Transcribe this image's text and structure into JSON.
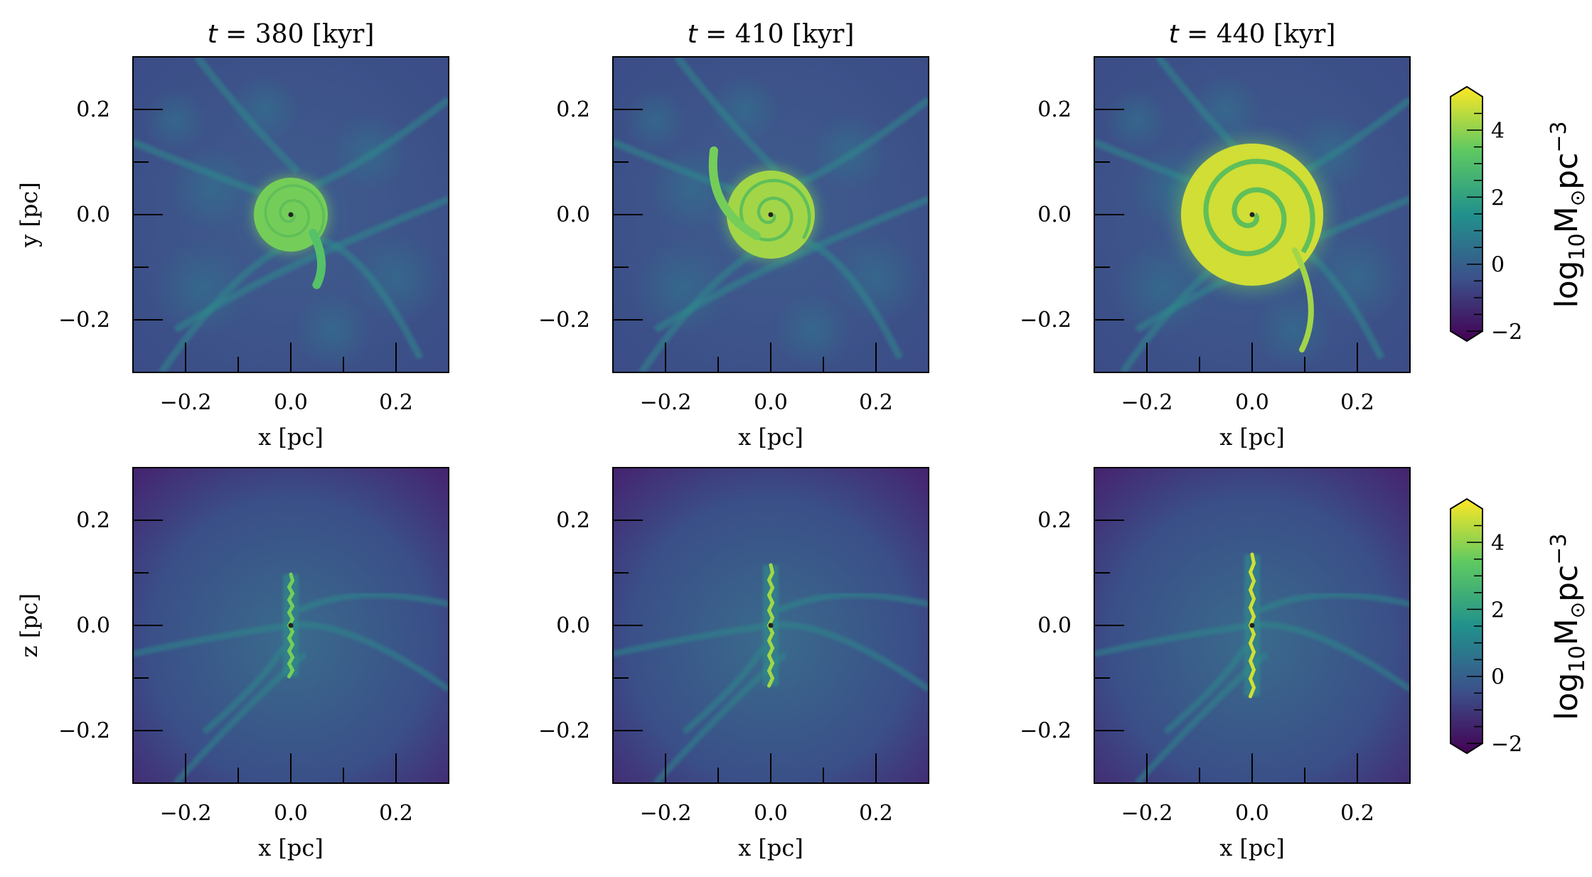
{
  "figure": {
    "panel_titles": [
      "t = 380 [kyr]",
      "t = 410 [kyr]",
      "t = 440 [kyr]"
    ],
    "panel_title_parts": [
      {
        "italic": "t",
        "rest": " = 380 [kyr]"
      },
      {
        "italic": "t",
        "rest": " = 410 [kyr]"
      },
      {
        "italic": "t",
        "rest": " = 440 [kyr]"
      }
    ],
    "row_ylabels": [
      "y [pc]",
      "z [pc]"
    ],
    "xlabel": "x [pc]",
    "colorbar_label_parts": {
      "base": "log",
      "sub": "10",
      "unit": "M",
      "sun": "⊙",
      "pc": "pc",
      "sup": "−3"
    },
    "colorbar_ticks": [
      "4",
      "2",
      "0",
      "−2"
    ],
    "colorbar_tick_values": [
      4,
      2,
      0,
      -2
    ],
    "colorbar_range": [
      -2,
      5
    ],
    "colormap": "viridis",
    "colormap_colors": [
      "#440154",
      "#3b528b",
      "#21918c",
      "#5ec962",
      "#fde725"
    ]
  },
  "chart_data": [
    {
      "type": "heatmap",
      "title": "t = 380 [kyr]",
      "xlabel": "x [pc]",
      "ylabel": "y [pc]",
      "xlim": [
        -0.3,
        0.3
      ],
      "ylim": [
        -0.3,
        0.3
      ],
      "xticks": [
        "−0.2",
        "0.0",
        "0.2"
      ],
      "yticks": [
        "0.2",
        "0.0",
        "−0.2"
      ],
      "colorbar": "log10 M⊙ pc−3",
      "projection": "face-on",
      "disk_level": 3.5
    },
    {
      "type": "heatmap",
      "title": "t = 410 [kyr]",
      "xlabel": "x [pc]",
      "ylabel": "",
      "xlim": [
        -0.3,
        0.3
      ],
      "ylim": [
        -0.3,
        0.3
      ],
      "xticks": [
        "−0.2",
        "0.0",
        "0.2"
      ],
      "yticks": [
        "0.2",
        "0.0",
        "−0.2"
      ],
      "colorbar": "log10 M⊙ pc−3",
      "projection": "face-on",
      "disk_level": 4.0
    },
    {
      "type": "heatmap",
      "title": "t = 440 [kyr]",
      "xlabel": "x [pc]",
      "ylabel": "",
      "xlim": [
        -0.3,
        0.3
      ],
      "ylim": [
        -0.3,
        0.3
      ],
      "xticks": [
        "−0.2",
        "0.0",
        "0.2"
      ],
      "yticks": [
        "0.2",
        "0.0",
        "−0.2"
      ],
      "colorbar": "log10 M⊙ pc−3",
      "projection": "face-on",
      "disk_level": 4.5
    },
    {
      "type": "heatmap",
      "title": "",
      "xlabel": "x [pc]",
      "ylabel": "z [pc]",
      "xlim": [
        -0.3,
        0.3
      ],
      "ylim": [
        -0.3,
        0.3
      ],
      "xticks": [
        "−0.2",
        "0.0",
        "0.2"
      ],
      "yticks": [
        "0.2",
        "0.0",
        "−0.2"
      ],
      "colorbar": "log10 M⊙ pc−3",
      "projection": "edge-on",
      "disk_level": 3.5
    },
    {
      "type": "heatmap",
      "title": "",
      "xlabel": "x [pc]",
      "ylabel": "",
      "xlim": [
        -0.3,
        0.3
      ],
      "ylim": [
        -0.3,
        0.3
      ],
      "xticks": [
        "−0.2",
        "0.0",
        "0.2"
      ],
      "yticks": [
        "0.2",
        "0.0",
        "−0.2"
      ],
      "colorbar": "log10 M⊙ pc−3",
      "projection": "edge-on",
      "disk_level": 4.0
    },
    {
      "type": "heatmap",
      "title": "",
      "xlabel": "x [pc]",
      "ylabel": "",
      "xlim": [
        -0.3,
        0.3
      ],
      "ylim": [
        -0.3,
        0.3
      ],
      "xticks": [
        "−0.2",
        "0.0",
        "0.2"
      ],
      "yticks": [
        "0.2",
        "0.0",
        "−0.2"
      ],
      "colorbar": "log10 M⊙ pc−3",
      "projection": "edge-on",
      "disk_level": 4.5
    }
  ]
}
